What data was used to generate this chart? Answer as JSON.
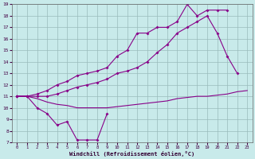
{
  "xlabel": "Windchill (Refroidissement éolien,°C)",
  "bg_color": "#c8eaea",
  "line_color": "#880088",
  "grid_color": "#99bbbb",
  "xmin": 0,
  "xmax": 23,
  "ymin": 7,
  "ymax": 19,
  "yticks": [
    7,
    8,
    9,
    10,
    11,
    12,
    13,
    14,
    15,
    16,
    17,
    18,
    19
  ],
  "xticks": [
    0,
    1,
    2,
    3,
    4,
    5,
    6,
    7,
    8,
    9,
    10,
    11,
    12,
    13,
    14,
    15,
    16,
    17,
    18,
    19,
    20,
    21,
    22,
    23
  ],
  "curve1_x": [
    0,
    1,
    2,
    3,
    4,
    5,
    6,
    7,
    8,
    9
  ],
  "curve1_y": [
    11,
    11,
    10,
    9.5,
    8.5,
    8.8,
    7.2,
    7.2,
    7.2,
    9.5
  ],
  "curve2_x": [
    0,
    1,
    2,
    3,
    4,
    5,
    6,
    7,
    8,
    9,
    10,
    11,
    12,
    13,
    14,
    15,
    16,
    17,
    18,
    19,
    20,
    21,
    22,
    23
  ],
  "curve2_y": [
    11,
    11,
    10.8,
    10.5,
    10.3,
    10.2,
    10.0,
    10.0,
    10.0,
    10.0,
    10.1,
    10.2,
    10.3,
    10.4,
    10.5,
    10.6,
    10.8,
    10.9,
    11.0,
    11.0,
    11.1,
    11.2,
    11.4,
    11.5
  ],
  "curve3_x": [
    0,
    1,
    2,
    3,
    4,
    5,
    6,
    7,
    8,
    9,
    10,
    11,
    12,
    13,
    14,
    15,
    16,
    17,
    18,
    19,
    20,
    21,
    22
  ],
  "curve3_y": [
    11,
    11,
    11,
    11,
    11.2,
    11.5,
    11.8,
    12.0,
    12.2,
    12.5,
    13.0,
    13.2,
    13.5,
    14.0,
    14.8,
    15.5,
    16.5,
    17.0,
    17.5,
    18.0,
    16.5,
    14.5,
    13.0
  ],
  "curve4_x": [
    0,
    1,
    2,
    3,
    4,
    5,
    6,
    7,
    8,
    9,
    10,
    11,
    12,
    13,
    14,
    15,
    16,
    17,
    18,
    19,
    20,
    21
  ],
  "curve4_y": [
    11,
    11,
    11.2,
    11.5,
    12.0,
    12.3,
    12.8,
    13.0,
    13.2,
    13.5,
    14.5,
    15.0,
    16.5,
    16.5,
    17.0,
    17.0,
    17.5,
    19.0,
    18.0,
    18.5,
    18.5,
    18.5
  ]
}
